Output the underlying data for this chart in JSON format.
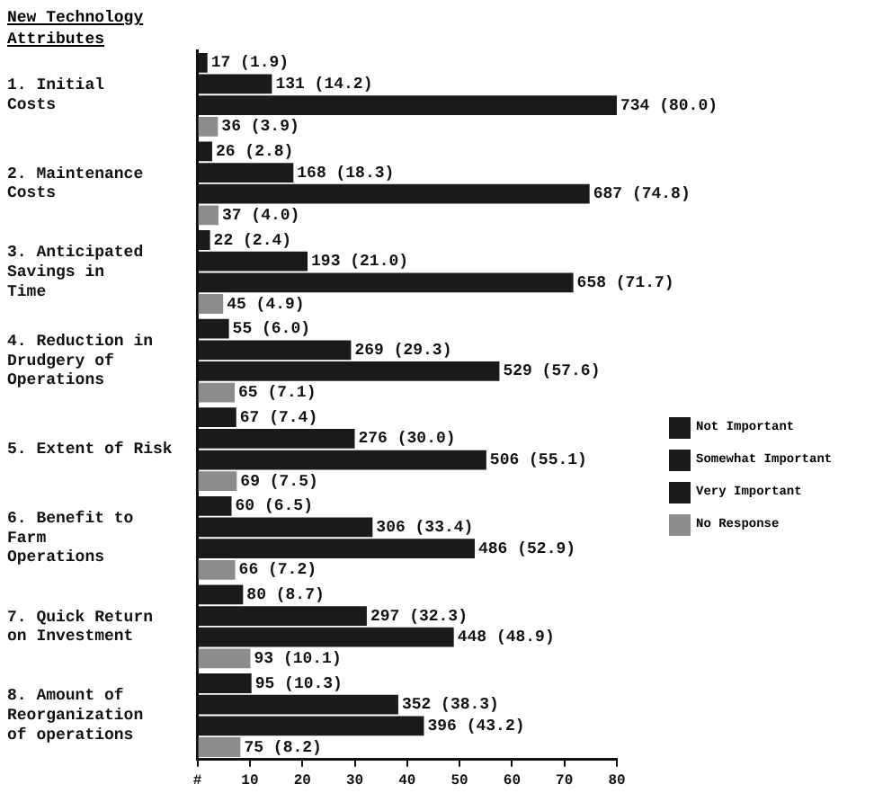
{
  "chart_data": {
    "type": "bar",
    "orientation": "horizontal",
    "ylabel": "New Technology\nAttributes",
    "categories": [
      "1. Initial\nCosts",
      "2. Maintenance\nCosts",
      "3. Anticipated\nSavings in\nTime",
      "4. Reduction in\nDrudgery of\nOperations",
      "5. Extent of Risk",
      "6. Benefit to\nFarm\nOperations",
      "7. Quick Return\non Investment",
      "8. Amount of\nReorganization\nof operations"
    ],
    "series": [
      {
        "name": "Not Important",
        "color": "#1a1a1a",
        "values": [
          1.9,
          2.8,
          2.4,
          6.0,
          7.4,
          6.5,
          8.7,
          10.3
        ],
        "value_labels": [
          "17 (1.9)",
          "26 (2.8)",
          "22 (2.4)",
          "55 (6.0)",
          "67 (7.4)",
          "60 (6.5)",
          "80 (8.7)",
          "95 (10.3)"
        ]
      },
      {
        "name": "Somewhat Important",
        "color": "#1a1a1a",
        "values": [
          14.2,
          18.3,
          21.0,
          29.3,
          30.0,
          33.4,
          32.3,
          38.3
        ],
        "value_labels": [
          "131 (14.2)",
          "168 (18.3)",
          "193 (21.0)",
          "269 (29.3)",
          "276 (30.0)",
          "306 (33.4)",
          "297 (32.3)",
          "352 (38.3)"
        ]
      },
      {
        "name": "Very Important",
        "color": "#1a1a1a",
        "values": [
          80.0,
          74.8,
          71.7,
          57.6,
          55.1,
          52.9,
          48.9,
          43.2
        ],
        "value_labels": [
          "734 (80.0)",
          "687 (74.8)",
          "658 (71.7)",
          "529 (57.6)",
          "506 (55.1)",
          "486 (52.9)",
          "448 (48.9)",
          "396 (43.2)"
        ]
      },
      {
        "name": "No Response",
        "color": "#8c8c8c",
        "values": [
          3.9,
          4.0,
          4.9,
          7.1,
          7.5,
          7.2,
          10.1,
          8.2
        ],
        "value_labels": [
          "36 (3.9)",
          "37 (4.0)",
          "45 (4.9)",
          "65 (7.1)",
          "69 (7.5)",
          "66 (7.2)",
          "93 (10.1)",
          "75 (8.2)"
        ]
      }
    ],
    "xlim": [
      0,
      80
    ],
    "xticks": [
      {
        "value": 0,
        "label": "#"
      },
      10,
      20,
      30,
      40,
      50,
      60,
      70,
      80
    ],
    "grid": false,
    "legend": "right"
  }
}
